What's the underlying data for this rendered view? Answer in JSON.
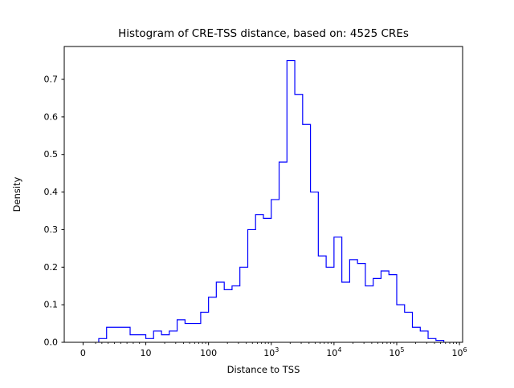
{
  "figure": {
    "title": "Histogram of CRE-TSS distance, based on: 4525 CREs",
    "xlabel": "Distance to TSS",
    "ylabel": "Density"
  },
  "chart_data": {
    "type": "bar",
    "subtype": "step-histogram",
    "title": "Histogram of CRE-TSS distance, based on: 4525 CREs",
    "xlabel": "Distance to TSS",
    "ylabel": "Density",
    "n_samples": 4525,
    "x_scale": "symlog",
    "linthresh": 10,
    "xlim": [
      0,
      1000000
    ],
    "ylim": [
      0,
      0.7875
    ],
    "grid": false,
    "legend": "none",
    "line_color": "#0000ff",
    "bin_edges": [
      2.5,
      3.75,
      5,
      6.25,
      7.5,
      8.75,
      10,
      13.3,
      17.8,
      23.7,
      31.6,
      42.2,
      56.2,
      75,
      100,
      133,
      178,
      237,
      316,
      422,
      562,
      750,
      1000,
      1334,
      1778,
      2371,
      3162,
      4217,
      5623,
      7499,
      10000,
      13335,
      17783,
      23714,
      31623,
      42170,
      56234,
      74989,
      100000,
      133352,
      177828,
      237137,
      316228,
      421697,
      562341
    ],
    "densities": [
      0.01,
      0.04,
      0.04,
      0.04,
      0.02,
      0.02,
      0.01,
      0.03,
      0.02,
      0.03,
      0.06,
      0.05,
      0.05,
      0.08,
      0.12,
      0.16,
      0.14,
      0.15,
      0.2,
      0.3,
      0.34,
      0.33,
      0.38,
      0.48,
      0.75,
      0.66,
      0.58,
      0.4,
      0.23,
      0.2,
      0.28,
      0.16,
      0.22,
      0.21,
      0.15,
      0.17,
      0.19,
      0.18,
      0.1,
      0.08,
      0.04,
      0.03,
      0.01,
      0.005
    ],
    "x_ticks": [
      {
        "value": 0,
        "label": "0"
      },
      {
        "value": 10,
        "label": "10"
      },
      {
        "value": 100,
        "label": "100"
      },
      {
        "value": 1000,
        "label": "10",
        "sup": "3"
      },
      {
        "value": 10000,
        "label": "10",
        "sup": "4"
      },
      {
        "value": 100000,
        "label": "10",
        "sup": "5"
      },
      {
        "value": 1000000,
        "label": "10",
        "sup": "6"
      }
    ],
    "y_ticks": [
      {
        "value": 0.0,
        "label": "0.0"
      },
      {
        "value": 0.1,
        "label": "0.1"
      },
      {
        "value": 0.2,
        "label": "0.2"
      },
      {
        "value": 0.3,
        "label": "0.3"
      },
      {
        "value": 0.4,
        "label": "0.4"
      },
      {
        "value": 0.5,
        "label": "0.5"
      },
      {
        "value": 0.6,
        "label": "0.6"
      },
      {
        "value": 0.7,
        "label": "0.7"
      }
    ]
  }
}
